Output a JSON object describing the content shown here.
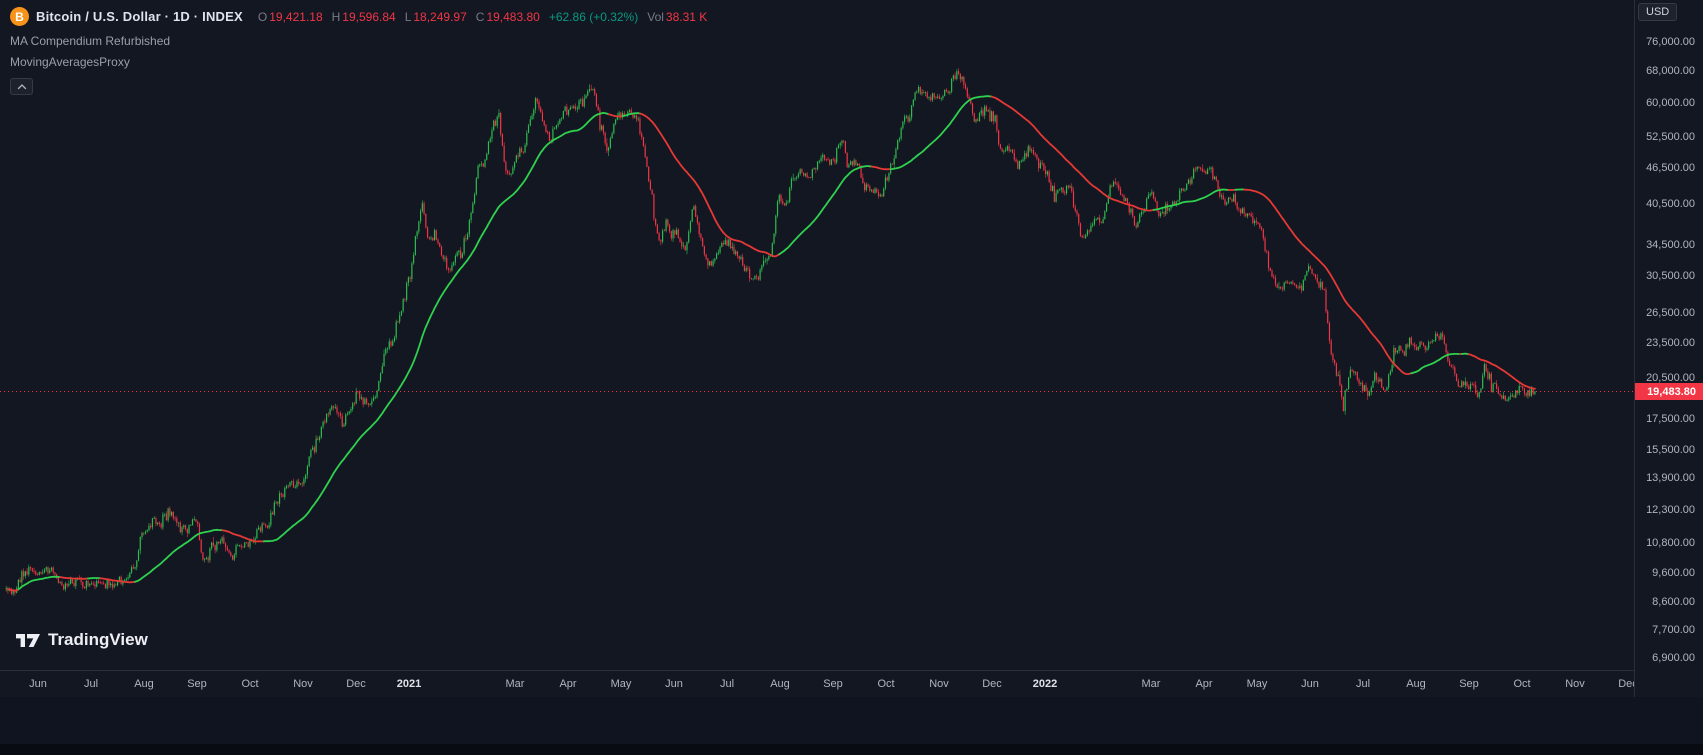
{
  "header": {
    "symbol_title": "Bitcoin / U.S. Dollar · 1D · INDEX",
    "ohlc": {
      "open_label": "O",
      "open": "19,421.18",
      "high_label": "H",
      "high": "19,596.84",
      "low_label": "L",
      "low": "18,249.97",
      "close_label": "C",
      "close": "19,483.80",
      "change": "+62.86 (+0.32%)",
      "vol_label": "Vol",
      "volume": "38.31 K"
    },
    "indicators": [
      "MA Compendium Refurbished",
      "MovingAveragesProxy"
    ]
  },
  "price_axis": {
    "currency_button": "USD",
    "ticks": [
      {
        "label": "76,000.00",
        "value": 76000
      },
      {
        "label": "68,000.00",
        "value": 68000
      },
      {
        "label": "60,000.00",
        "value": 60000
      },
      {
        "label": "52,500.00",
        "value": 52500
      },
      {
        "label": "46,500.00",
        "value": 46500
      },
      {
        "label": "40,500.00",
        "value": 40500
      },
      {
        "label": "34,500.00",
        "value": 34500
      },
      {
        "label": "30,500.00",
        "value": 30500
      },
      {
        "label": "26,500.00",
        "value": 26500
      },
      {
        "label": "23,500.00",
        "value": 23500
      },
      {
        "label": "20,500.00",
        "value": 20500
      },
      {
        "label": "17,500.00",
        "value": 17500
      },
      {
        "label": "15,500.00",
        "value": 15500
      },
      {
        "label": "13,900.00",
        "value": 13900
      },
      {
        "label": "12,300.00",
        "value": 12300
      },
      {
        "label": "10,800.00",
        "value": 10800
      },
      {
        "label": "9,600.00",
        "value": 9600
      },
      {
        "label": "8,600.00",
        "value": 8600
      },
      {
        "label": "7,700.00",
        "value": 7700
      },
      {
        "label": "6,900.00",
        "value": 6900
      }
    ],
    "last_price": {
      "label": "19,483.80",
      "value": 19483.8
    }
  },
  "time_axis": {
    "labels": [
      {
        "text": "Jun",
        "m": 0
      },
      {
        "text": "Jul",
        "m": 1
      },
      {
        "text": "Aug",
        "m": 2
      },
      {
        "text": "Sep",
        "m": 3
      },
      {
        "text": "Oct",
        "m": 4
      },
      {
        "text": "Nov",
        "m": 5
      },
      {
        "text": "Dec",
        "m": 6
      },
      {
        "text": "2021",
        "m": 7,
        "year": true
      },
      {
        "text": "Mar",
        "m": 9
      },
      {
        "text": "Apr",
        "m": 10
      },
      {
        "text": "May",
        "m": 11
      },
      {
        "text": "Jun",
        "m": 12
      },
      {
        "text": "Jul",
        "m": 13
      },
      {
        "text": "Aug",
        "m": 14
      },
      {
        "text": "Sep",
        "m": 15
      },
      {
        "text": "Oct",
        "m": 16
      },
      {
        "text": "Nov",
        "m": 17
      },
      {
        "text": "Dec",
        "m": 18
      },
      {
        "text": "2022",
        "m": 19,
        "year": true
      },
      {
        "text": "Mar",
        "m": 21
      },
      {
        "text": "Apr",
        "m": 22
      },
      {
        "text": "May",
        "m": 23
      },
      {
        "text": "Jun",
        "m": 24
      },
      {
        "text": "Jul",
        "m": 25
      },
      {
        "text": "Aug",
        "m": 26
      },
      {
        "text": "Sep",
        "m": 27
      },
      {
        "text": "Oct",
        "m": 28
      },
      {
        "text": "Nov",
        "m": 29
      },
      {
        "text": "Dec",
        "m": 30
      }
    ]
  },
  "logo": {
    "text": "TradingView"
  },
  "colors": {
    "background": "#131722",
    "panel_border": "#2a2e39",
    "axis_text": "#b2b5be",
    "muted_text": "#787b86",
    "candle_up": "#2dbd4e",
    "candle_down": "#f23645",
    "ma_up": "#2fd24f",
    "ma_down": "#e53935",
    "last_price_line": "#f23645",
    "bitcoin_orange": "#f7931a",
    "change_green": "#089981"
  },
  "chart_data": {
    "type": "candlestick",
    "title": "Bitcoin / U.S. Dollar · 1D · INDEX",
    "timeframe": "1D",
    "y_axis": {
      "scale": "log",
      "ticks": [
        76000,
        68000,
        60000,
        52500,
        46500,
        40500,
        34500,
        30500,
        26500,
        23500,
        20500,
        17500,
        15500,
        13900,
        12300,
        10800,
        9600,
        8600,
        7700,
        6900
      ]
    },
    "last_price": 19483.8,
    "ohlc_today": {
      "open": 19421.18,
      "high": 19596.84,
      "low": 18249.97,
      "close": 19483.8,
      "change": 62.86,
      "change_pct": 0.32,
      "volume": "38.31 K"
    },
    "ma": {
      "name": "MovingAveragesProxy"
    },
    "price_anchors_note": "pairs of [months since Jun-1-2020, approx close price USD] read from the plot",
    "price_anchors": [
      [
        -0.6,
        9200
      ],
      [
        -0.45,
        8850
      ],
      [
        -0.3,
        9550
      ],
      [
        -0.15,
        9750
      ],
      [
        0,
        9450
      ],
      [
        0.15,
        9800
      ],
      [
        0.3,
        9600
      ],
      [
        0.45,
        9050
      ],
      [
        0.6,
        9350
      ],
      [
        0.8,
        9250
      ],
      [
        1,
        9140
      ],
      [
        1.2,
        9250
      ],
      [
        1.45,
        9200
      ],
      [
        1.65,
        9350
      ],
      [
        1.85,
        9950
      ],
      [
        1.95,
        11000
      ],
      [
        2.05,
        11350
      ],
      [
        2.15,
        11800
      ],
      [
        2.3,
        11500
      ],
      [
        2.5,
        12250
      ],
      [
        2.65,
        11600
      ],
      [
        2.85,
        11500
      ],
      [
        3,
        11650
      ],
      [
        3.1,
        10250
      ],
      [
        3.25,
        10450
      ],
      [
        3.45,
        10950
      ],
      [
        3.65,
        10300
      ],
      [
        3.85,
        10700
      ],
      [
        4,
        10780
      ],
      [
        4.15,
        11350
      ],
      [
        4.35,
        11650
      ],
      [
        4.55,
        12950
      ],
      [
        4.75,
        13550
      ],
      [
        4.9,
        13650
      ],
      [
        5,
        13800
      ],
      [
        5.15,
        15250
      ],
      [
        5.3,
        16350
      ],
      [
        5.45,
        17700
      ],
      [
        5.6,
        18300
      ],
      [
        5.75,
        17100
      ],
      [
        5.9,
        18100
      ],
      [
        6,
        19400
      ],
      [
        6.1,
        18750
      ],
      [
        6.25,
        18300
      ],
      [
        6.4,
        19450
      ],
      [
        6.55,
        22850
      ],
      [
        6.7,
        23900
      ],
      [
        6.85,
        26500
      ],
      [
        6.95,
        28900
      ],
      [
        7.05,
        31500
      ],
      [
        7.15,
        36800
      ],
      [
        7.25,
        40000
      ],
      [
        7.35,
        35400
      ],
      [
        7.5,
        35800
      ],
      [
        7.65,
        32100
      ],
      [
        7.8,
        31000
      ],
      [
        7.9,
        33400
      ],
      [
        8,
        33500
      ],
      [
        8.15,
        37600
      ],
      [
        8.3,
        46300
      ],
      [
        8.45,
        48700
      ],
      [
        8.6,
        55900
      ],
      [
        8.7,
        57400
      ],
      [
        8.8,
        46800
      ],
      [
        8.9,
        45200
      ],
      [
        9,
        48500
      ],
      [
        9.15,
        50300
      ],
      [
        9.3,
        57000
      ],
      [
        9.4,
        61200
      ],
      [
        9.5,
        55700
      ],
      [
        9.65,
        52400
      ],
      [
        9.8,
        55800
      ],
      [
        9.95,
        58800
      ],
      [
        10.1,
        58100
      ],
      [
        10.25,
        59800
      ],
      [
        10.4,
        63200
      ],
      [
        10.5,
        62100
      ],
      [
        10.6,
        55800
      ],
      [
        10.75,
        49100
      ],
      [
        10.85,
        54000
      ],
      [
        10.95,
        57700
      ],
      [
        11.05,
        57400
      ],
      [
        11.2,
        58300
      ],
      [
        11.3,
        56400
      ],
      [
        11.45,
        49700
      ],
      [
        11.55,
        43500
      ],
      [
        11.65,
        37000
      ],
      [
        11.75,
        34800
      ],
      [
        11.85,
        37600
      ],
      [
        11.95,
        35700
      ],
      [
        12.05,
        36700
      ],
      [
        12.2,
        33600
      ],
      [
        12.35,
        40200
      ],
      [
        12.5,
        35600
      ],
      [
        12.65,
        31700
      ],
      [
        12.75,
        32600
      ],
      [
        12.9,
        34500
      ],
      [
        13,
        35000
      ],
      [
        13.15,
        33600
      ],
      [
        13.35,
        31500
      ],
      [
        13.55,
        29800
      ],
      [
        13.7,
        32150
      ],
      [
        13.85,
        34300
      ],
      [
        13.97,
        41500
      ],
      [
        14.1,
        39900
      ],
      [
        14.25,
        44600
      ],
      [
        14.4,
        46000
      ],
      [
        14.55,
        44700
      ],
      [
        14.7,
        47150
      ],
      [
        14.8,
        49300
      ],
      [
        14.95,
        47100
      ],
      [
        15.05,
        48850
      ],
      [
        15.18,
        52650
      ],
      [
        15.28,
        46850
      ],
      [
        15.45,
        47100
      ],
      [
        15.6,
        43200
      ],
      [
        15.75,
        42850
      ],
      [
        15.9,
        41550
      ],
      [
        16,
        43800
      ],
      [
        16.12,
        47650
      ],
      [
        16.3,
        54950
      ],
      [
        16.45,
        57450
      ],
      [
        16.63,
        64300
      ],
      [
        16.78,
        60850
      ],
      [
        16.93,
        62250
      ],
      [
        17.05,
        61350
      ],
      [
        17.2,
        63250
      ],
      [
        17.32,
        66950
      ],
      [
        17.45,
        64950
      ],
      [
        17.6,
        58700
      ],
      [
        17.72,
        56300
      ],
      [
        17.85,
        58750
      ],
      [
        17.95,
        57000
      ],
      [
        18.07,
        57200
      ],
      [
        18.14,
        49350
      ],
      [
        18.3,
        50100
      ],
      [
        18.5,
        46700
      ],
      [
        18.7,
        50800
      ],
      [
        18.9,
        47150
      ],
      [
        19,
        46200
      ],
      [
        19.18,
        41550
      ],
      [
        19.35,
        43100
      ],
      [
        19.5,
        42600
      ],
      [
        19.68,
        35100
      ],
      [
        19.8,
        36250
      ],
      [
        19.95,
        37950
      ],
      [
        20.1,
        38450
      ],
      [
        20.25,
        43900
      ],
      [
        20.4,
        42400
      ],
      [
        20.55,
        40100
      ],
      [
        20.72,
        37250
      ],
      [
        20.85,
        39200
      ],
      [
        21,
        43150
      ],
      [
        21.15,
        38600
      ],
      [
        21.3,
        39400
      ],
      [
        21.5,
        41100
      ],
      [
        21.7,
        44350
      ],
      [
        21.88,
        47100
      ],
      [
        21.97,
        45550
      ],
      [
        22.1,
        46400
      ],
      [
        22.25,
        43150
      ],
      [
        22.4,
        40100
      ],
      [
        22.55,
        41500
      ],
      [
        22.7,
        39450
      ],
      [
        22.85,
        38600
      ],
      [
        22.97,
        37650
      ],
      [
        23.1,
        36050
      ],
      [
        23.25,
        31050
      ],
      [
        23.4,
        29050
      ],
      [
        23.55,
        30200
      ],
      [
        23.7,
        29250
      ],
      [
        23.85,
        29050
      ],
      [
        23.97,
        31750
      ],
      [
        24.1,
        29900
      ],
      [
        24.25,
        29450
      ],
      [
        24.4,
        22450
      ],
      [
        24.55,
        20450
      ],
      [
        24.63,
        18350
      ],
      [
        24.73,
        20750
      ],
      [
        24.85,
        21100
      ],
      [
        24.95,
        19950
      ],
      [
        25.1,
        19300
      ],
      [
        25.25,
        20800
      ],
      [
        25.42,
        19300
      ],
      [
        25.6,
        23200
      ],
      [
        25.75,
        22600
      ],
      [
        25.9,
        23800
      ],
      [
        26.05,
        23300
      ],
      [
        26.2,
        23200
      ],
      [
        26.38,
        24450
      ],
      [
        26.5,
        24300
      ],
      [
        26.62,
        21600
      ],
      [
        26.8,
        20100
      ],
      [
        26.95,
        20050
      ],
      [
        27.05,
        20150
      ],
      [
        27.15,
        18950
      ],
      [
        27.3,
        21400
      ],
      [
        27.42,
        20200
      ],
      [
        27.58,
        19400
      ],
      [
        27.72,
        18900
      ],
      [
        27.85,
        19100
      ],
      [
        27.97,
        19600
      ],
      [
        28.1,
        19300
      ],
      [
        28.25,
        19480
      ]
    ]
  }
}
